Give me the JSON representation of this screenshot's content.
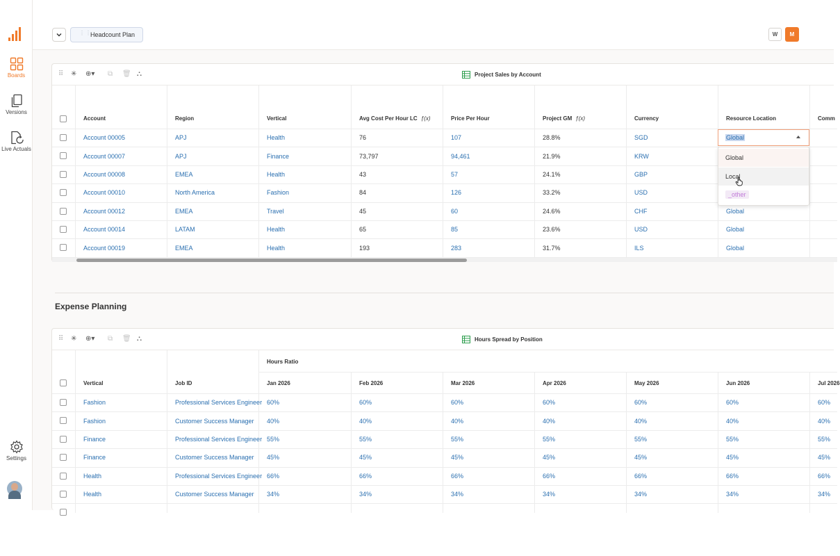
{
  "app": {
    "board_tab_label": "Headcount Plan",
    "user_w": "W",
    "user_m": "M",
    "accent_color": "#f07a2a",
    "link_color": "#2a6fb0"
  },
  "sidebar": {
    "items": [
      {
        "label": "Boards",
        "icon": "boards-icon",
        "active": true
      },
      {
        "label": "Versions",
        "icon": "versions-icon",
        "active": false
      },
      {
        "label": "Live Actuals",
        "icon": "live-actuals-icon",
        "active": false
      },
      {
        "label": "Settings",
        "icon": "gear-icon",
        "active": false
      }
    ]
  },
  "project_sales": {
    "title": "Project Sales by Account",
    "columns": [
      "Account",
      "Region",
      "Vertical",
      "Avg Cost Per Hour LC",
      "Price Per Hour",
      "Project GM",
      "Currency",
      "Resource Location",
      "Comm"
    ],
    "formula_mark": "ƒ(x)",
    "rows": [
      [
        "Account 00005",
        "APJ",
        "Health",
        "76",
        "107",
        "28.8%",
        "SGD",
        "Global"
      ],
      [
        "Account 00007",
        "APJ",
        "Finance",
        "73,797",
        "94,461",
        "21.9%",
        "KRW",
        ""
      ],
      [
        "Account 00008",
        "EMEA",
        "Health",
        "43",
        "57",
        "24.1%",
        "GBP",
        ""
      ],
      [
        "Account 00010",
        "North America",
        "Fashion",
        "84",
        "126",
        "33.2%",
        "USD",
        ""
      ],
      [
        "Account 00012",
        "EMEA",
        "Travel",
        "45",
        "60",
        "24.6%",
        "CHF",
        "Global"
      ],
      [
        "Account 00014",
        "LATAM",
        "Health",
        "65",
        "85",
        "23.6%",
        "USD",
        "Global"
      ],
      [
        "Account 00019",
        "EMEA",
        "Health",
        "193",
        "283",
        "31.7%",
        "ILS",
        "Global"
      ]
    ],
    "dropdown": {
      "selected": "Global",
      "options": [
        "Global",
        "Local",
        "_other"
      ],
      "hovered": "Local"
    }
  },
  "expense": {
    "section_title": "Expense Planning",
    "title": "Hours Spread by Position",
    "group_header": "Hours Ratio",
    "columns": [
      "Vertical",
      "Job ID",
      "Jan 2026",
      "Feb 2026",
      "Mar 2026",
      "Apr 2026",
      "May 2026",
      "Jun 2026",
      "Jul 2026"
    ],
    "rows": [
      [
        "Fashion",
        "Professional Services Engineer",
        "60%",
        "60%",
        "60%",
        "60%",
        "60%",
        "60%",
        "60%"
      ],
      [
        "Fashion",
        "Customer Success Manager",
        "40%",
        "40%",
        "40%",
        "40%",
        "40%",
        "40%",
        "40%"
      ],
      [
        "Finance",
        "Professional Services Engineer",
        "55%",
        "55%",
        "55%",
        "55%",
        "55%",
        "55%",
        "55%"
      ],
      [
        "Finance",
        "Customer Success Manager",
        "45%",
        "45%",
        "45%",
        "45%",
        "45%",
        "45%",
        "45%"
      ],
      [
        "Health",
        "Professional Services Engineer",
        "66%",
        "66%",
        "66%",
        "66%",
        "66%",
        "66%",
        "66%"
      ],
      [
        "Health",
        "Customer Success Manager",
        "34%",
        "34%",
        "34%",
        "34%",
        "34%",
        "34%",
        "34%"
      ]
    ]
  }
}
